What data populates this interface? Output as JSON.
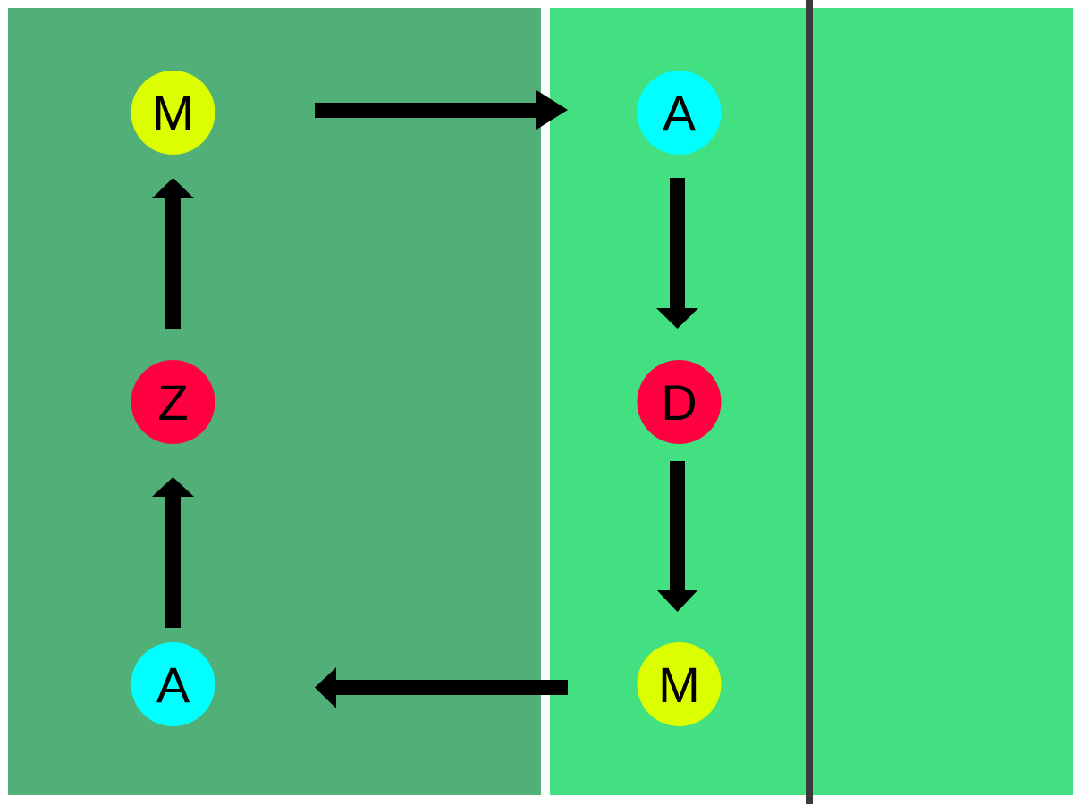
{
  "colors": {
    "background": "#ffffff",
    "zone_left": "#50b077",
    "zone_right": "#42e080",
    "divider_line": "#3a3a3a",
    "arrow": "#000000",
    "node_yellow": "#dbff00",
    "node_cyan": "#00ffff",
    "node_red": "#ff0040",
    "label_text": "#000000"
  },
  "nodes": [
    {
      "id": "left-top",
      "label": "M",
      "color": "#dbff00"
    },
    {
      "id": "left-middle",
      "label": "Z",
      "color": "#ff0040"
    },
    {
      "id": "left-bottom",
      "label": "A",
      "color": "#00ffff"
    },
    {
      "id": "right-top",
      "label": "A",
      "color": "#00ffff"
    },
    {
      "id": "right-middle",
      "label": "D",
      "color": "#ff0040"
    },
    {
      "id": "right-bottom",
      "label": "M",
      "color": "#dbff00"
    }
  ],
  "edges": [
    {
      "from": "left-top",
      "to": "right-top"
    },
    {
      "from": "right-top",
      "to": "right-middle"
    },
    {
      "from": "right-middle",
      "to": "right-bottom"
    },
    {
      "from": "right-bottom",
      "to": "left-bottom"
    },
    {
      "from": "left-bottom",
      "to": "left-middle"
    },
    {
      "from": "left-middle",
      "to": "left-top"
    }
  ]
}
